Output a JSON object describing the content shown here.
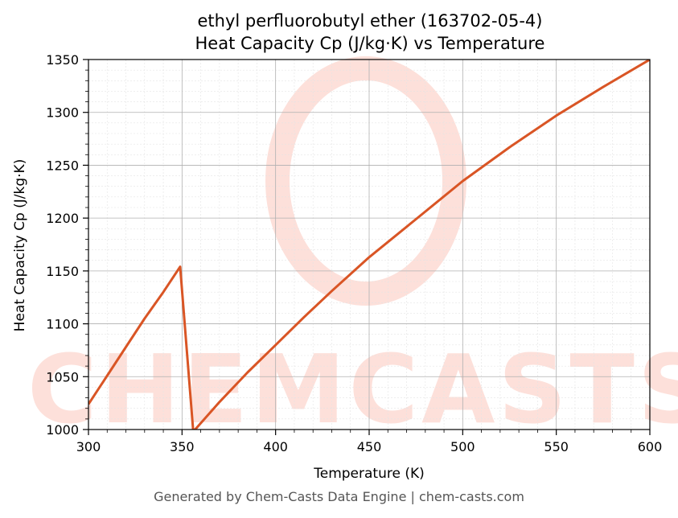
{
  "chart_data": {
    "type": "line",
    "title_line1": "ethyl perfluorobutyl ether (163702-05-4)",
    "title_line2": "Heat Capacity Cp (J/kg·K) vs Temperature",
    "xlabel": "Temperature (K)",
    "ylabel": "Heat Capacity Cp (J/kg·K)",
    "xlim": [
      300,
      600
    ],
    "ylim": [
      1000,
      1350
    ],
    "xticks": [
      300,
      350,
      400,
      450,
      500,
      550,
      600
    ],
    "yticks": [
      1000,
      1050,
      1100,
      1150,
      1200,
      1250,
      1300,
      1350
    ],
    "grid": true,
    "series": [
      {
        "color": "#d95525",
        "x": [
          300,
          310,
          320,
          330,
          340,
          349,
          356,
          370,
          385,
          400,
          415,
          430,
          450,
          475,
          500,
          525,
          550,
          575,
          600
        ],
        "y": [
          1024,
          1051,
          1078,
          1105,
          1130,
          1154,
          998,
          1026,
          1054,
          1080,
          1106,
          1131,
          1163,
          1199,
          1235,
          1267,
          1297,
          1324,
          1350
        ]
      }
    ]
  },
  "watermark": "CHEMCASTS",
  "watermark_color": "#fde0da",
  "footer": "Generated by Chem-Casts Data Engine | chem-casts.com"
}
